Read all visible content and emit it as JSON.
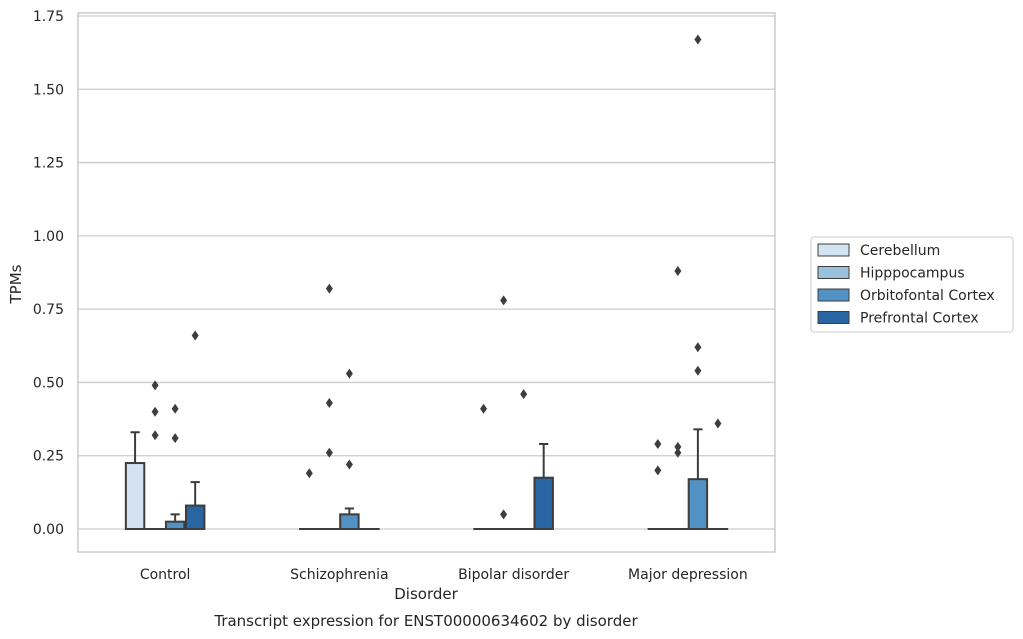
{
  "chart_data": {
    "type": "box",
    "title": "",
    "caption": "Transcript expression for ENST00000634602 by disorder",
    "xlabel": "Disorder",
    "ylabel": "TPMs",
    "ylim": [
      -0.08,
      1.75
    ],
    "yticks": [
      "0.00",
      "0.25",
      "0.50",
      "0.75",
      "1.00",
      "1.25",
      "1.50",
      "1.75"
    ],
    "ytick_values": [
      0,
      0.25,
      0.5,
      0.75,
      1.0,
      1.25,
      1.5,
      1.75
    ],
    "grid": "horizontal",
    "legend_position": "right",
    "categories": [
      "Control",
      "Schizophrenia",
      "Bipolar disorder",
      "Major depression"
    ],
    "series": [
      {
        "name": "Cerebellum",
        "color": "#d3e3f2",
        "boxes": [
          {
            "q1": 0,
            "median": 0,
            "q3": 0.225,
            "whisker_low": 0,
            "whisker_high": 0.33,
            "outliers": []
          },
          {
            "q1": 0,
            "median": 0,
            "q3": 0,
            "whisker_low": 0,
            "whisker_high": 0,
            "outliers": [
              0.19
            ]
          },
          {
            "q1": 0,
            "median": 0,
            "q3": 0,
            "whisker_low": 0,
            "whisker_high": 0,
            "outliers": [
              0.41
            ]
          },
          {
            "q1": 0,
            "median": 0,
            "q3": 0,
            "whisker_low": 0,
            "whisker_high": 0,
            "outliers": [
              0.29,
              0.2
            ]
          }
        ]
      },
      {
        "name": "Hipppocampus",
        "color": "#9bc2dc",
        "boxes": [
          {
            "q1": 0,
            "median": 0,
            "q3": 0,
            "whisker_low": 0,
            "whisker_high": 0,
            "outliers": [
              0.49,
              0.4,
              0.32
            ]
          },
          {
            "q1": 0,
            "median": 0,
            "q3": 0,
            "whisker_low": 0,
            "whisker_high": 0,
            "outliers": [
              0.82,
              0.43,
              0.26
            ]
          },
          {
            "q1": 0,
            "median": 0,
            "q3": 0,
            "whisker_low": 0,
            "whisker_high": 0,
            "outliers": [
              0.78,
              0.05
            ]
          },
          {
            "q1": 0,
            "median": 0,
            "q3": 0,
            "whisker_low": 0,
            "whisker_high": 0,
            "outliers": [
              0.88,
              0.28,
              0.26
            ]
          }
        ]
      },
      {
        "name": "Orbitofontal Cortex",
        "color": "#5291c4",
        "boxes": [
          {
            "q1": 0,
            "median": 0,
            "q3": 0.025,
            "whisker_low": 0,
            "whisker_high": 0.05,
            "outliers": [
              0.41,
              0.31
            ]
          },
          {
            "q1": 0,
            "median": 0,
            "q3": 0.05,
            "whisker_low": 0,
            "whisker_high": 0.07,
            "outliers": [
              0.53,
              0.22
            ]
          },
          {
            "q1": 0,
            "median": 0,
            "q3": 0,
            "whisker_low": 0,
            "whisker_high": 0,
            "outliers": [
              0.46
            ]
          },
          {
            "q1": 0,
            "median": 0,
            "q3": 0.17,
            "whisker_low": 0,
            "whisker_high": 0.34,
            "outliers": [
              1.67,
              0.62,
              0.54
            ]
          }
        ]
      },
      {
        "name": "Prefrontal Cortex",
        "color": "#2a65a3",
        "boxes": [
          {
            "q1": 0,
            "median": 0,
            "q3": 0.08,
            "whisker_low": 0,
            "whisker_high": 0.16,
            "outliers": [
              0.66
            ]
          },
          {
            "q1": 0,
            "median": 0,
            "q3": 0,
            "whisker_low": 0,
            "whisker_high": 0,
            "outliers": []
          },
          {
            "q1": 0,
            "median": 0,
            "q3": 0.175,
            "whisker_low": 0,
            "whisker_high": 0.29,
            "outliers": []
          },
          {
            "q1": 0,
            "median": 0,
            "q3": 0,
            "whisker_low": 0,
            "whisker_high": 0,
            "outliers": [
              0.36
            ]
          }
        ]
      }
    ]
  }
}
